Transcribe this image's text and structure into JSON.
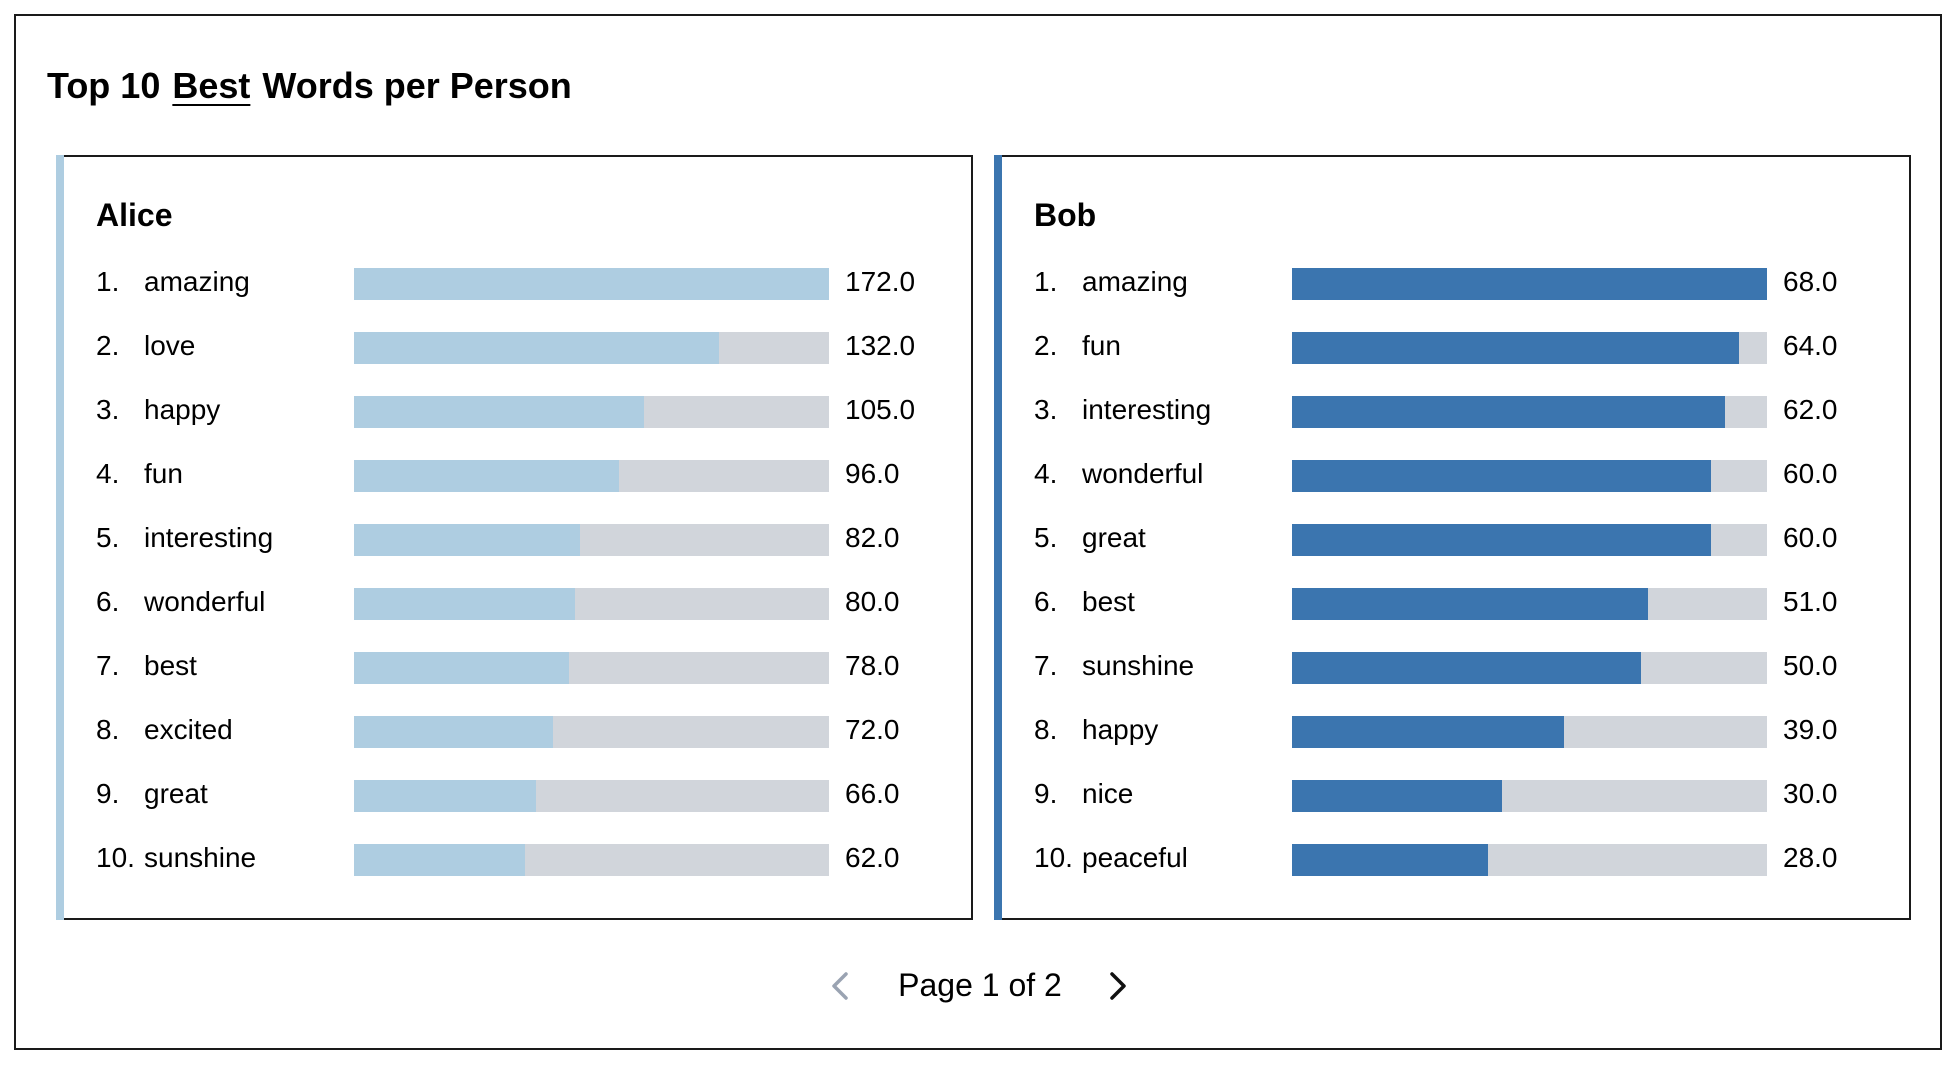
{
  "title": {
    "prefix": "Top 10",
    "metric": "Best",
    "suffix": "Words per Person"
  },
  "colors": {
    "alice": "#aecde1",
    "bob": "#3b75af",
    "track": "#d1d5db"
  },
  "chart_data": [
    {
      "type": "bar",
      "title": "Alice",
      "orientation": "horizontal",
      "categories": [
        "amazing",
        "love",
        "happy",
        "fun",
        "interesting",
        "wonderful",
        "best",
        "excited",
        "great",
        "sunshine"
      ],
      "values": [
        172.0,
        132.0,
        105.0,
        96.0,
        82.0,
        80.0,
        78.0,
        72.0,
        66.0,
        62.0
      ],
      "value_labels": [
        "172.0",
        "132.0",
        "105.0",
        "96.0",
        "82.0",
        "80.0",
        "78.0",
        "72.0",
        "66.0",
        "62.0"
      ],
      "ranks": [
        "1.",
        "2.",
        "3.",
        "4.",
        "5.",
        "6.",
        "7.",
        "8.",
        "9.",
        "10."
      ],
      "color": "#aecde1"
    },
    {
      "type": "bar",
      "title": "Bob",
      "orientation": "horizontal",
      "categories": [
        "amazing",
        "fun",
        "interesting",
        "wonderful",
        "great",
        "best",
        "sunshine",
        "happy",
        "nice",
        "peaceful"
      ],
      "values": [
        68.0,
        64.0,
        62.0,
        60.0,
        60.0,
        51.0,
        50.0,
        39.0,
        30.0,
        28.0
      ],
      "value_labels": [
        "68.0",
        "64.0",
        "62.0",
        "60.0",
        "60.0",
        "51.0",
        "50.0",
        "39.0",
        "30.0",
        "28.0"
      ],
      "ranks": [
        "1.",
        "2.",
        "3.",
        "4.",
        "5.",
        "6.",
        "7.",
        "8.",
        "9.",
        "10."
      ],
      "color": "#3b75af"
    }
  ],
  "pager": {
    "label": "Page 1 of 2",
    "prev_icon": "chevron-left-icon",
    "next_icon": "chevron-right-icon"
  }
}
